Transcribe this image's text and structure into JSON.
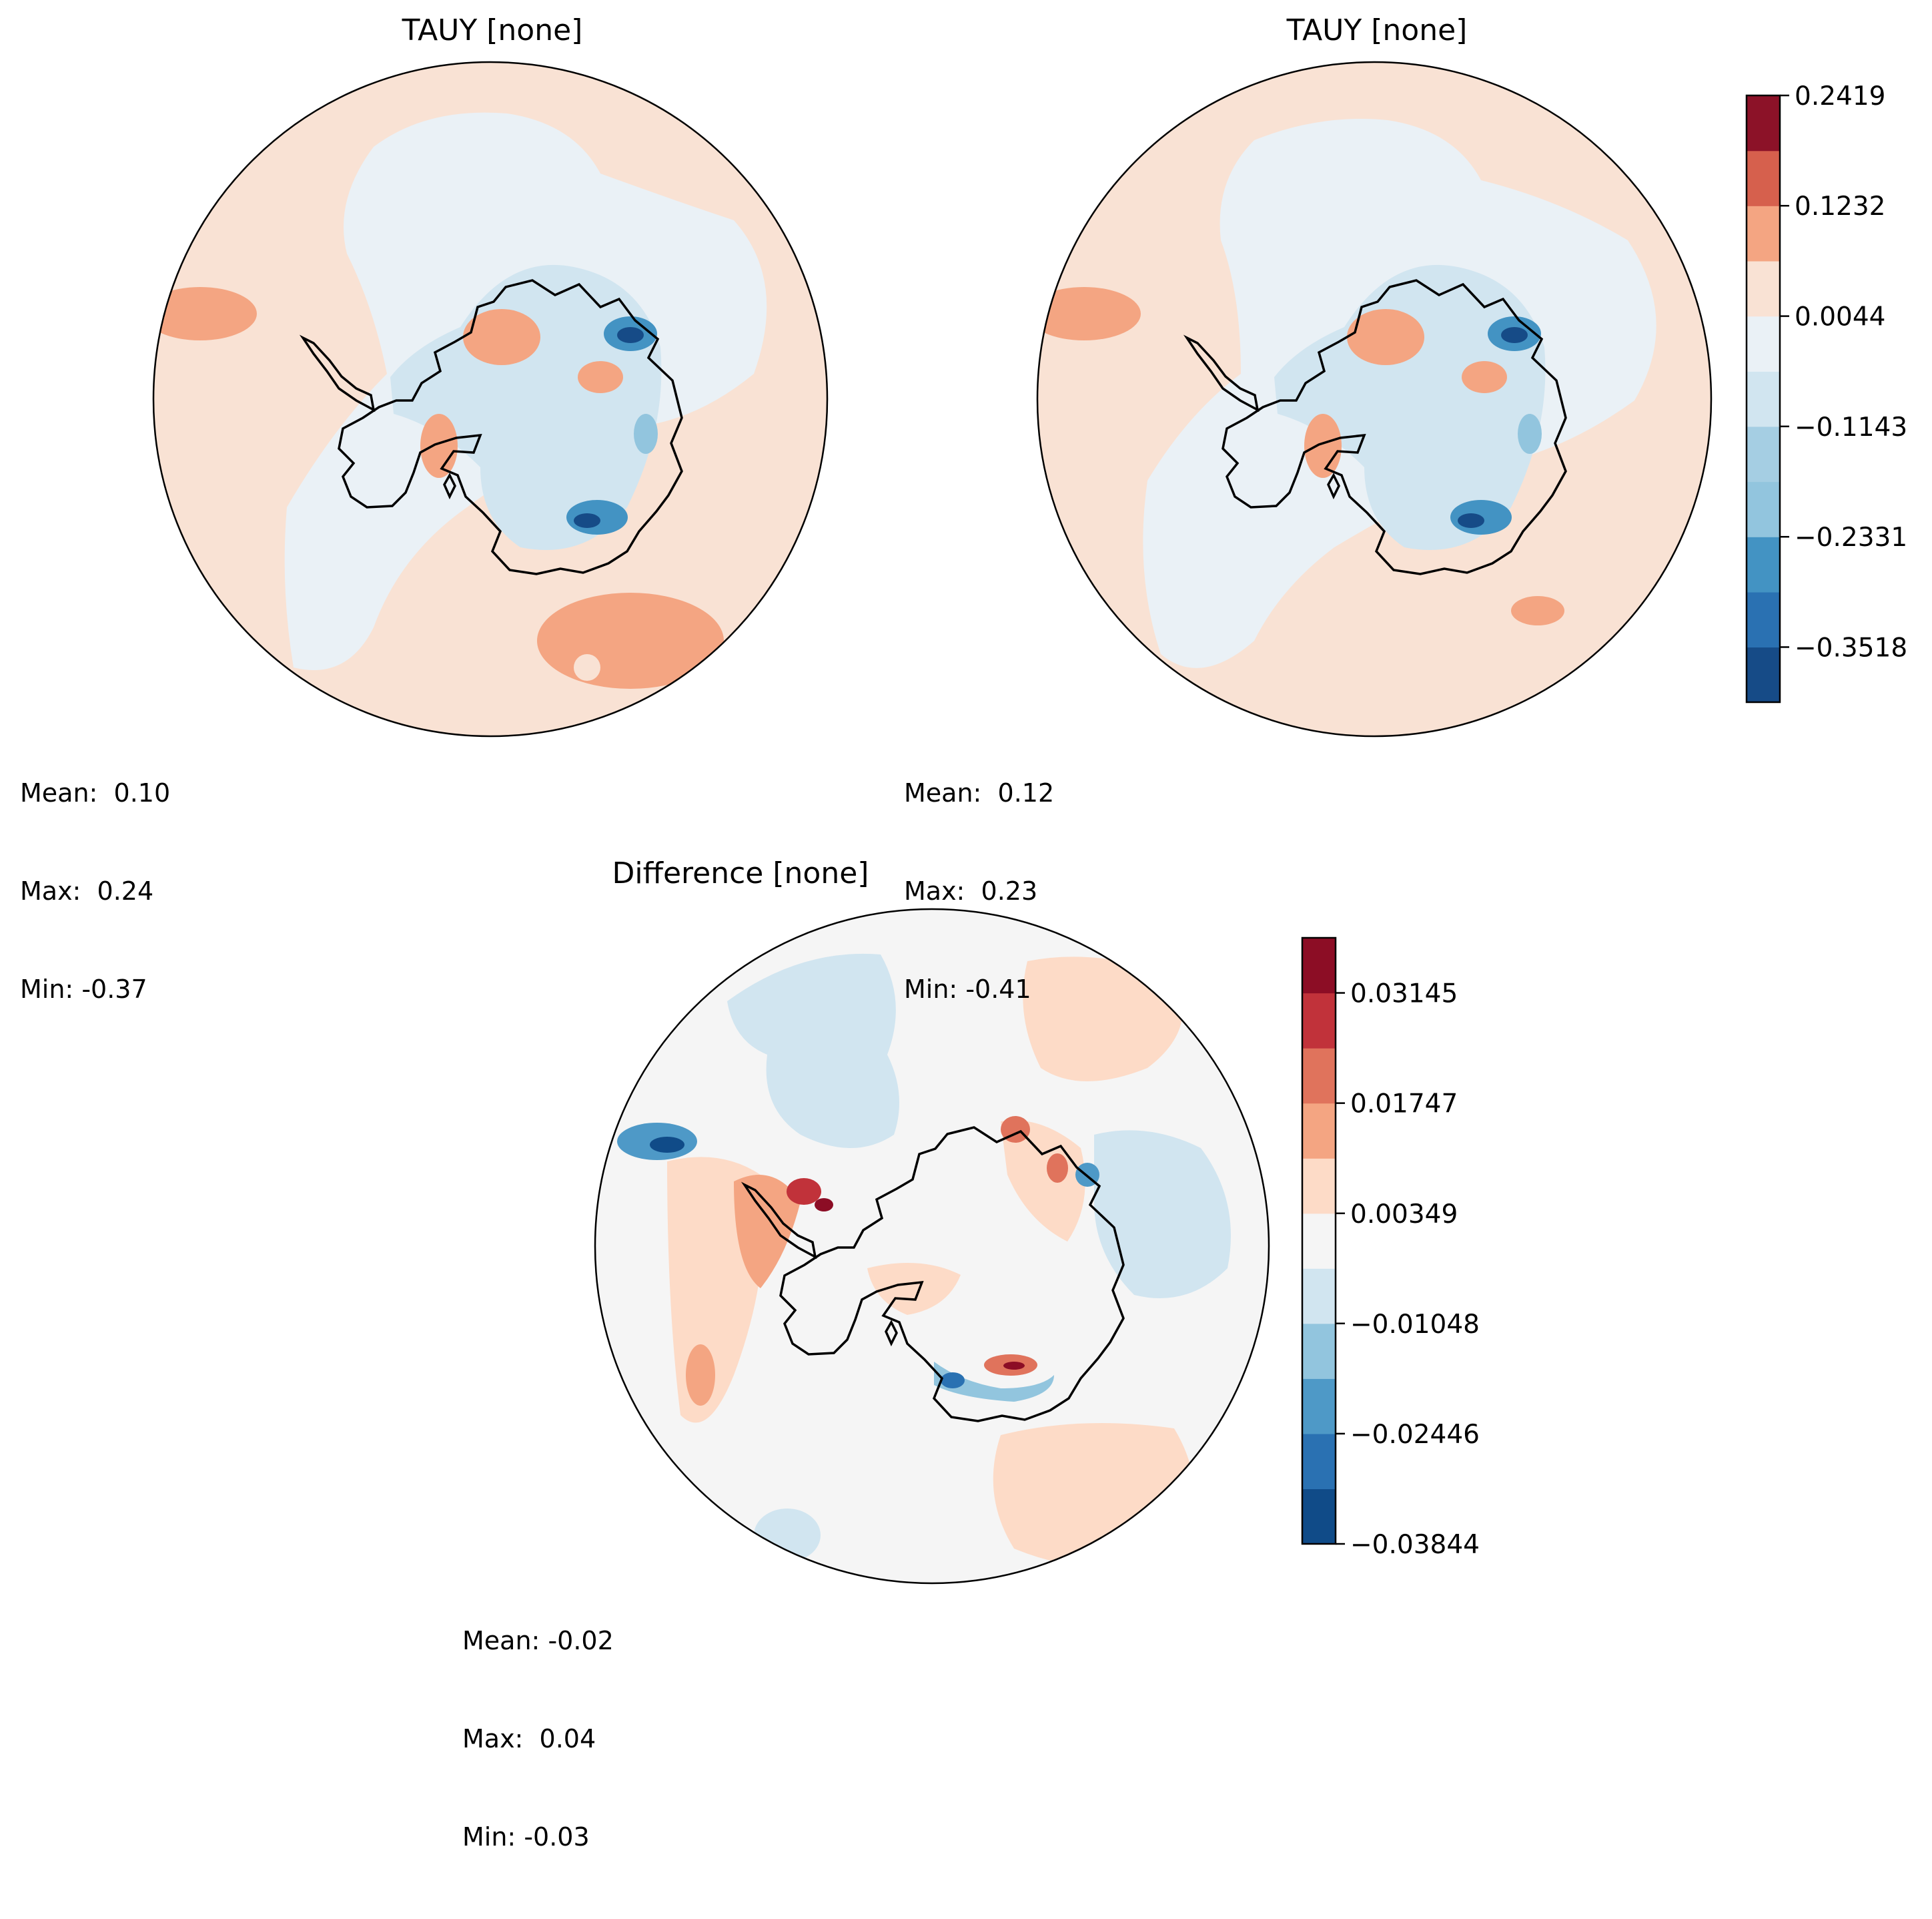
{
  "chart_data": [
    {
      "type": "heatmap",
      "panel": "test",
      "title": "TAUY [none]",
      "projection": "south-polar-stereographic",
      "stats": {
        "mean_label": "Mean:",
        "mean": " 0.10",
        "max_label": "Max:",
        "max": " 0.24",
        "min_label": "Min:",
        "min": "-0.37"
      },
      "colorbar": "shared-main"
    },
    {
      "type": "heatmap",
      "panel": "reference",
      "title": "TAUY [none]",
      "projection": "south-polar-stereographic",
      "stats": {
        "mean_label": "Mean:",
        "mean": " 0.12",
        "max_label": "Max:",
        "max": " 0.23",
        "min_label": "Min:",
        "min": "-0.41"
      },
      "colorbar": "shared-main"
    },
    {
      "type": "heatmap",
      "panel": "difference",
      "title": "Difference [none]",
      "projection": "south-polar-stereographic",
      "stats": {
        "mean_label": "Mean:",
        "mean": "-0.02",
        "max_label": "Max:",
        "max": " 0.04",
        "min_label": "Min:",
        "min": "-0.03"
      },
      "colorbar": "diff"
    }
  ],
  "colorbars": {
    "main": {
      "range": [
        -0.4111,
        0.2419
      ],
      "levels": [
        -0.4111,
        -0.3518,
        -0.2925,
        -0.2331,
        -0.1737,
        -0.1143,
        -0.055,
        0.0044,
        0.0638,
        0.1232,
        0.1825,
        0.2419
      ],
      "colors": [
        "#164b87",
        "#2a71b2",
        "#4393c3",
        "#92c5de",
        "#a5cee3",
        "#d1e5f0",
        "#eaf1f6",
        "#f9e2d4",
        "#f4a582",
        "#d6604d",
        "#8c1228"
      ],
      "tick_values": [
        0.2419,
        0.1232,
        0.0044,
        -0.1143,
        -0.2331,
        -0.3518
      ],
      "tick_labels": [
        "0.2419",
        "0.1232",
        "0.0044",
        "−0.1143",
        "−0.2331",
        "−0.3518"
      ]
    },
    "diff": {
      "range": [
        -0.03844,
        0.03844
      ],
      "levels": [
        -0.03844,
        -0.03145,
        -0.02446,
        -0.01747,
        -0.01048,
        -0.00349,
        0.00349,
        0.01048,
        0.01747,
        0.02446,
        0.03145,
        0.03844
      ],
      "colors": [
        "#104b88",
        "#2a71b2",
        "#4e99c7",
        "#92c5de",
        "#d1e5f0",
        "#f5f5f5",
        "#fddbc7",
        "#f4a582",
        "#e0735c",
        "#c1323a",
        "#8c0d25"
      ],
      "tick_values": [
        0.03145,
        0.01747,
        0.00349,
        -0.01048,
        -0.02446,
        -0.03844
      ],
      "tick_labels": [
        "0.03145",
        "0.01747",
        "0.00349",
        "−0.01048",
        "−0.02446",
        "−0.03844"
      ]
    }
  },
  "map_colors": {
    "ocean_positive": "#f9e2d4",
    "ocean_negative": "#eaf1f6",
    "strong_positive": "#f4a582",
    "mid_negative": "#d1e5f0",
    "strong_negative": "#4393c3",
    "darkest_negative": "#164b87",
    "diff_background": "#f5f5f5",
    "coastline": "#000000"
  }
}
